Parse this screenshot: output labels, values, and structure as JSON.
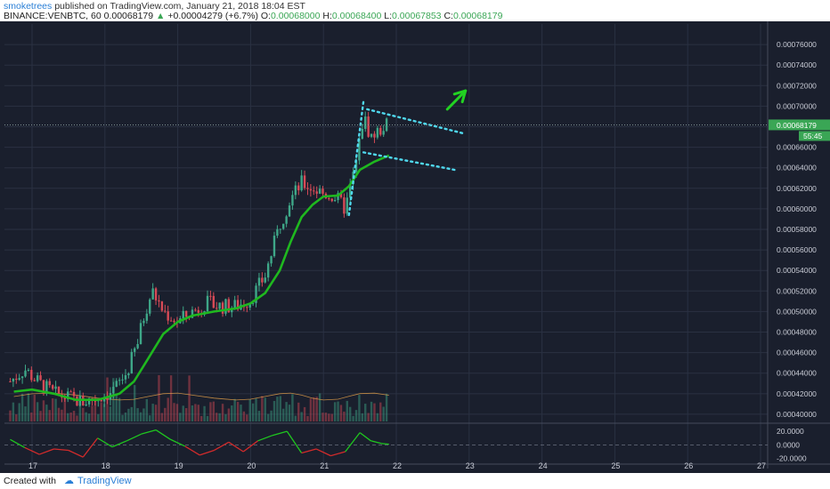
{
  "header": {
    "user": "smoketrees",
    "published": " published on TradingView.com, January 21, 2018 18:04 EST",
    "symbol": "BINANCE:VENBTC, 60",
    "last": "0.00068179",
    "change_arrow": "▲",
    "change": "+0.00004279 (+6.7%)",
    "o_label": "O:",
    "o": "0.00068000",
    "h_label": "H:",
    "h": "0.00068400",
    "l_label": "L:",
    "l": "0.00067853",
    "c_label": "C:",
    "c": "0.00068179"
  },
  "footer": {
    "created": "Created with",
    "brand": "TradingView"
  },
  "colors": {
    "background": "#1a1f2d",
    "grid": "#2a3142",
    "up": "#3ea788",
    "down": "#d64a56",
    "ma": "#1fb81f",
    "trendline": "#4fd8ee",
    "arrow": "#22d222",
    "price_label": "#3aa655"
  },
  "chart_data": {
    "type": "candlestick",
    "symbol": "BINANCE:VENBTC",
    "interval": "60",
    "x_ticks": [
      "17",
      "18",
      "19",
      "20",
      "21",
      "22",
      "23",
      "24",
      "25",
      "26",
      "27"
    ],
    "y_ticks": [
      "0.00076000",
      "0.00074000",
      "0.00072000",
      "0.00070000",
      "0.00068000",
      "0.00066000",
      "0.00064000",
      "0.00062000",
      "0.00060000",
      "0.00058000",
      "0.00056000",
      "0.00054000",
      "0.00052000",
      "0.00050000",
      "0.00048000",
      "0.00046000",
      "0.00044000",
      "0.00042000",
      "0.00040000"
    ],
    "ylim": [
      0.000393,
      0.00078
    ],
    "last_price_label": "0.00068179",
    "countdown_label": "55:45",
    "price_path": [
      [
        16.7,
        0.000432
      ],
      [
        16.9,
        0.000444
      ],
      [
        17.1,
        0.00043
      ],
      [
        17.3,
        0.00042
      ],
      [
        17.5,
        0.000416
      ],
      [
        17.7,
        0.000412
      ],
      [
        17.9,
        0.000416
      ],
      [
        18.1,
        0.000422
      ],
      [
        18.3,
        0.00044
      ],
      [
        18.45,
        0.00047
      ],
      [
        18.55,
        0.0005
      ],
      [
        18.65,
        0.00052
      ],
      [
        18.8,
        0.0005
      ],
      [
        19.0,
        0.00049
      ],
      [
        19.2,
        0.0005
      ],
      [
        19.4,
        0.000508
      ],
      [
        19.6,
        0.000505
      ],
      [
        19.8,
        0.000505
      ],
      [
        20.0,
        0.000512
      ],
      [
        20.2,
        0.000535
      ],
      [
        20.4,
        0.000585
      ],
      [
        20.55,
        0.00061
      ],
      [
        20.7,
        0.000625
      ],
      [
        20.85,
        0.00062
      ],
      [
        21.0,
        0.000615
      ],
      [
        21.15,
        0.000612
      ],
      [
        21.3,
        0.0006
      ],
      [
        21.45,
        0.000645
      ],
      [
        21.55,
        0.00069
      ],
      [
        21.65,
        0.00067
      ],
      [
        21.75,
        0.000675
      ],
      [
        21.85,
        0.000682
      ]
    ],
    "ma_line": [
      [
        16.75,
        0.000422
      ],
      [
        17.0,
        0.000424
      ],
      [
        17.3,
        0.00042
      ],
      [
        17.6,
        0.000414
      ],
      [
        17.9,
        0.000414
      ],
      [
        18.2,
        0.00042
      ],
      [
        18.4,
        0.000432
      ],
      [
        18.6,
        0.000455
      ],
      [
        18.8,
        0.000478
      ],
      [
        19.0,
        0.00049
      ],
      [
        19.2,
        0.000496
      ],
      [
        19.5,
        0.0005
      ],
      [
        19.8,
        0.000503
      ],
      [
        20.0,
        0.000508
      ],
      [
        20.2,
        0.000518
      ],
      [
        20.4,
        0.00054
      ],
      [
        20.55,
        0.000568
      ],
      [
        20.7,
        0.000592
      ],
      [
        20.85,
        0.000604
      ],
      [
        21.0,
        0.000612
      ],
      [
        21.2,
        0.000613
      ],
      [
        21.35,
        0.000622
      ],
      [
        21.5,
        0.000638
      ],
      [
        21.7,
        0.000646
      ],
      [
        21.9,
        0.000652
      ]
    ],
    "trendlines": [
      {
        "x1": 21.35,
        "y1": 0.000594,
        "x2": 21.55,
        "y2": 0.000705
      },
      {
        "x1": 21.6,
        "y1": 0.000697,
        "x2": 22.95,
        "y2": 0.000673
      },
      {
        "x1": 21.55,
        "y1": 0.000655,
        "x2": 22.8,
        "y2": 0.000638
      }
    ],
    "arrow": {
      "x1": 22.7,
      "y1": 0.000697,
      "x2": 22.95,
      "y2": 0.000715
    },
    "oscillator": {
      "y_ticks": [
        "20.0000",
        "0.0000",
        "-20.0000"
      ],
      "ylim": [
        -27,
        28
      ],
      "values": [
        [
          16.7,
          8
        ],
        [
          16.9,
          -4
        ],
        [
          17.1,
          -14
        ],
        [
          17.3,
          -6
        ],
        [
          17.5,
          -8
        ],
        [
          17.7,
          -18
        ],
        [
          17.9,
          10
        ],
        [
          18.1,
          -3
        ],
        [
          18.3,
          6
        ],
        [
          18.5,
          16
        ],
        [
          18.7,
          22
        ],
        [
          18.9,
          8
        ],
        [
          19.1,
          -2
        ],
        [
          19.3,
          -15
        ],
        [
          19.5,
          -8
        ],
        [
          19.7,
          4
        ],
        [
          19.9,
          -10
        ],
        [
          20.1,
          6
        ],
        [
          20.3,
          14
        ],
        [
          20.5,
          20
        ],
        [
          20.7,
          -12
        ],
        [
          20.9,
          -6
        ],
        [
          21.1,
          -16
        ],
        [
          21.3,
          -10
        ],
        [
          21.5,
          18
        ],
        [
          21.65,
          6
        ],
        [
          21.8,
          2
        ],
        [
          21.9,
          1
        ]
      ]
    }
  }
}
